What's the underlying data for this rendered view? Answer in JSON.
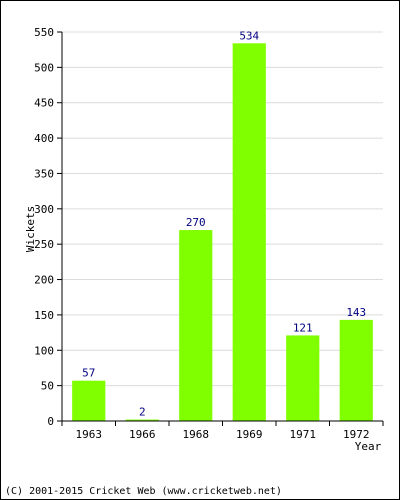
{
  "chart_data": {
    "type": "bar",
    "title": "",
    "xlabel": "Year",
    "ylabel": "Wickets",
    "categories": [
      "1963",
      "1966",
      "1968",
      "1969",
      "1971",
      "1972"
    ],
    "values": [
      57,
      2,
      270,
      534,
      121,
      143
    ],
    "data_labels": [
      "57",
      "2",
      "270",
      "534",
      "121",
      "143"
    ],
    "ylim": [
      0,
      550
    ],
    "yticks": [
      0,
      50,
      100,
      150,
      200,
      250,
      300,
      350,
      400,
      450,
      500,
      550
    ],
    "ytick_labels": [
      "0",
      "50",
      "100",
      "150",
      "200",
      "250",
      "300",
      "350",
      "400",
      "450",
      "500",
      "550"
    ],
    "grid": true,
    "legend": "none",
    "colors": {
      "bar": "#7fff00",
      "data_label": "#000080",
      "grid": "#dcdcdc",
      "axis": "#000000"
    }
  },
  "footer": {
    "copyright": "(C) 2001-2015 Cricket Web (www.cricketweb.net)"
  }
}
